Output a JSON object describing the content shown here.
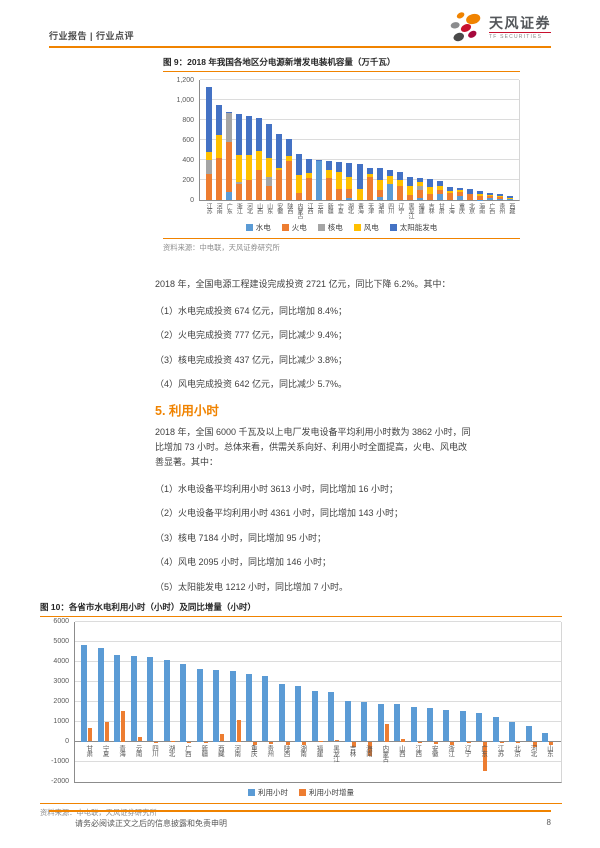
{
  "header": {
    "left": "行业报告 | 行业点评",
    "logo_cn": "天风证券",
    "logo_en": "TF SECURITIES"
  },
  "figure9": {
    "title": "图 9：2018 年我国各地区分电源新增发电装机容量（万千瓦）",
    "source": "资料来源：中电联，天风证券研究所"
  },
  "investment": {
    "intro": "2018 年，全国电源工程建设完成投资 2721 亿元，同比下降 6.2%。其中：",
    "items": [
      "（1）水电完成投资 674 亿元，同比增加 8.4%；",
      "（2）火电完成投资 777 亿元，同比减少 9.4%；",
      "（3）核电完成投资 437 亿元，同比减少 3.8%；",
      "（4）风电完成投资 642 亿元，同比减少 5.7%。"
    ]
  },
  "section5": {
    "heading": "5. 利用小时",
    "intro": "2018 年，全国 6000 千瓦及以上电厂发电设备平均利用小时数为 3862 小时，同比增加 73 小时。总体来看，供需关系向好、利用小时全面提高，火电、风电改善显著。其中：",
    "items": [
      "（1）水电设备平均利用小时 3613 小时，同比增加 16 小时；",
      "（2）火电设备平均利用小时 4361 小时，同比增加 143 小时；",
      "（3）核电 7184 小时，同比增加 95 小时；",
      "（4）风电 2095 小时，同比增加 146 小时；",
      "（5）太阳能发电 1212 小时，同比增加 7 小时。"
    ]
  },
  "figure10": {
    "title": "图 10：各省市水电利用小时（小时）及同比增量（小时）",
    "source": "资料来源：中电联，天风证券研究所"
  },
  "footer": {
    "disclaimer": "请务必阅读正文之后的信息披露和免责申明",
    "page": "8"
  },
  "colors": {
    "accent": "#F08300",
    "hydro": "#5B9BD5",
    "thermal": "#ED7D31",
    "nuclear": "#A5A5A5",
    "wind": "#FFC000",
    "solar": "#4472C4"
  },
  "chart_data": [
    {
      "type": "bar",
      "subtype": "stacked",
      "title": "2018 年我国各地区分电源新增发电装机容量（万千瓦）",
      "categories": [
        "江苏",
        "河南",
        "广东",
        "浙江",
        "河北",
        "山西",
        "山东",
        "安徽",
        "陕西",
        "内蒙古",
        "江西",
        "云南",
        "新疆",
        "宁夏",
        "湖北",
        "青海",
        "天津",
        "湖南",
        "四川",
        "辽宁",
        "黑龙江",
        "福建",
        "吉林",
        "甘肃",
        "上海",
        "重庆",
        "北京",
        "海南",
        "广西",
        "贵州",
        "西藏"
      ],
      "series": [
        {
          "name": "水电",
          "color": "#5B9BD5",
          "values": [
            0,
            0,
            80,
            0,
            0,
            0,
            0,
            0,
            0,
            0,
            0,
            390,
            0,
            0,
            20,
            0,
            0,
            30,
            160,
            0,
            0,
            20,
            0,
            60,
            0,
            40,
            0,
            5,
            20,
            15,
            10
          ]
        },
        {
          "name": "火电",
          "color": "#ED7D31",
          "values": [
            260,
            420,
            500,
            165,
            200,
            300,
            140,
            300,
            390,
            70,
            220,
            0,
            220,
            110,
            95,
            0,
            230,
            70,
            0,
            140,
            55,
            80,
            60,
            40,
            70,
            45,
            60,
            40,
            20,
            15,
            5
          ]
        },
        {
          "name": "核电",
          "color": "#A5A5A5",
          "values": [
            140,
            0,
            290,
            20,
            0,
            0,
            90,
            0,
            0,
            0,
            0,
            0,
            0,
            0,
            0,
            0,
            0,
            0,
            0,
            0,
            0,
            45,
            0,
            0,
            0,
            0,
            0,
            0,
            0,
            0,
            0
          ]
        },
        {
          "name": "风电",
          "color": "#FFC000",
          "values": [
            80,
            230,
            0,
            265,
            250,
            190,
            190,
            20,
            50,
            180,
            50,
            5,
            80,
            170,
            120,
            110,
            30,
            100,
            80,
            60,
            85,
            40,
            70,
            40,
            20,
            20,
            5,
            15,
            15,
            15,
            5
          ]
        },
        {
          "name": "太阳能发电",
          "color": "#4472C4",
          "values": [
            650,
            300,
            10,
            410,
            390,
            330,
            340,
            340,
            170,
            210,
            145,
            5,
            95,
            105,
            140,
            255,
            65,
            120,
            60,
            80,
            90,
            35,
            80,
            50,
            40,
            20,
            45,
            30,
            15,
            15,
            20
          ]
        }
      ],
      "ylim": [
        0,
        1200
      ],
      "ytick_step": 200,
      "tick_format": "comma",
      "grid": true,
      "legend_position": "bottom"
    },
    {
      "type": "bar",
      "subtype": "grouped",
      "title": "各省市水电利用小时（小时）及同比增量（小时）",
      "categories": [
        "甘肃",
        "宁夏",
        "青海",
        "云南",
        "四川",
        "湖北",
        "广西",
        "新疆",
        "西藏",
        "河南",
        "重庆",
        "贵州",
        "陕西",
        "湖南",
        "福建",
        "黑龙江",
        "吉林",
        "海南",
        "内蒙古",
        "山西",
        "江西",
        "安徽",
        "浙江",
        "辽宁",
        "广东",
        "江苏",
        "北京",
        "河北",
        "山东"
      ],
      "series": [
        {
          "name": "利用小时",
          "color": "#5B9BD5",
          "values": [
            4850,
            4700,
            4350,
            4280,
            4220,
            4080,
            3900,
            3650,
            3600,
            3550,
            3380,
            3280,
            2880,
            2800,
            2520,
            2470,
            2050,
            1960,
            1890,
            1870,
            1750,
            1680,
            1570,
            1550,
            1430,
            1250,
            1000,
            760,
            450
          ]
        },
        {
          "name": "利用小时增量",
          "color": "#ED7D31",
          "values": [
            680,
            980,
            1550,
            220,
            -40,
            40,
            -60,
            -90,
            380,
            1100,
            -150,
            -120,
            -180,
            -160,
            40,
            80,
            -250,
            -700,
            900,
            150,
            -60,
            -120,
            -180,
            -90,
            -1450,
            -60,
            -60,
            -250,
            -150
          ]
        }
      ],
      "ylim": [
        -2000,
        6000
      ],
      "ytick_step": 1000,
      "tick_format": "plain",
      "grid": true,
      "legend_position": "bottom"
    }
  ]
}
